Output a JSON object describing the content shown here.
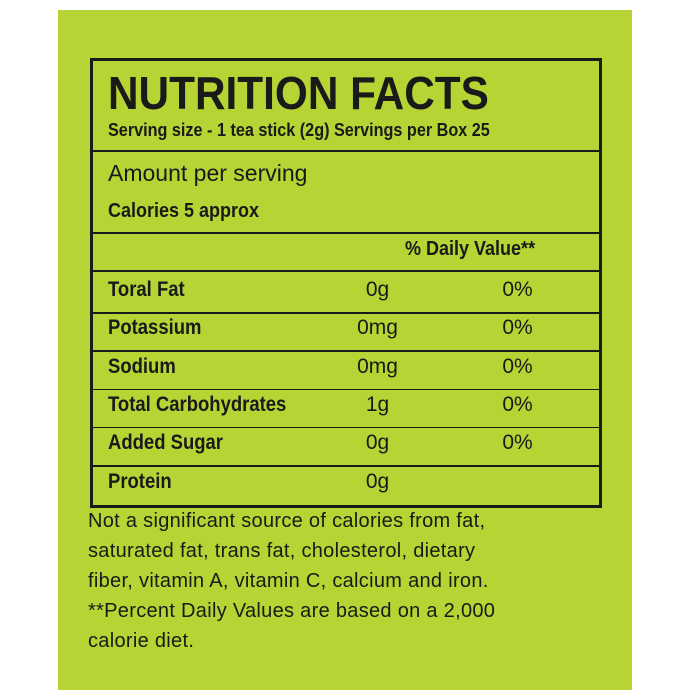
{
  "header": {
    "title": "NUTRITION FACTS",
    "serving": "Serving size  - 1 tea stick (2g) Servings per Box 25"
  },
  "amount": {
    "label": "Amount per serving",
    "calories": "Calories 5 approx"
  },
  "table": {
    "header": "% Daily Value**",
    "rows": [
      [
        "Toral Fat",
        "0g",
        "0%"
      ],
      [
        "Potassium",
        "0mg",
        "0%"
      ],
      [
        "Sodium",
        "0mg",
        "0%"
      ],
      [
        "Total Carbohydrates",
        "1g",
        "0%"
      ],
      [
        "Added Sugar",
        "0g",
        "0%"
      ],
      [
        "Protein",
        "0g"
      ]
    ]
  },
  "footer": {
    "lines": [
      "Not a significant source of calories from fat,",
      "saturated fat, trans fat, cholesterol, dietary",
      "fiber, vitamin A, vitamin C, calcium and iron.",
      "**Percent Daily Values are based on a 2,000",
      "calorie diet."
    ]
  }
}
